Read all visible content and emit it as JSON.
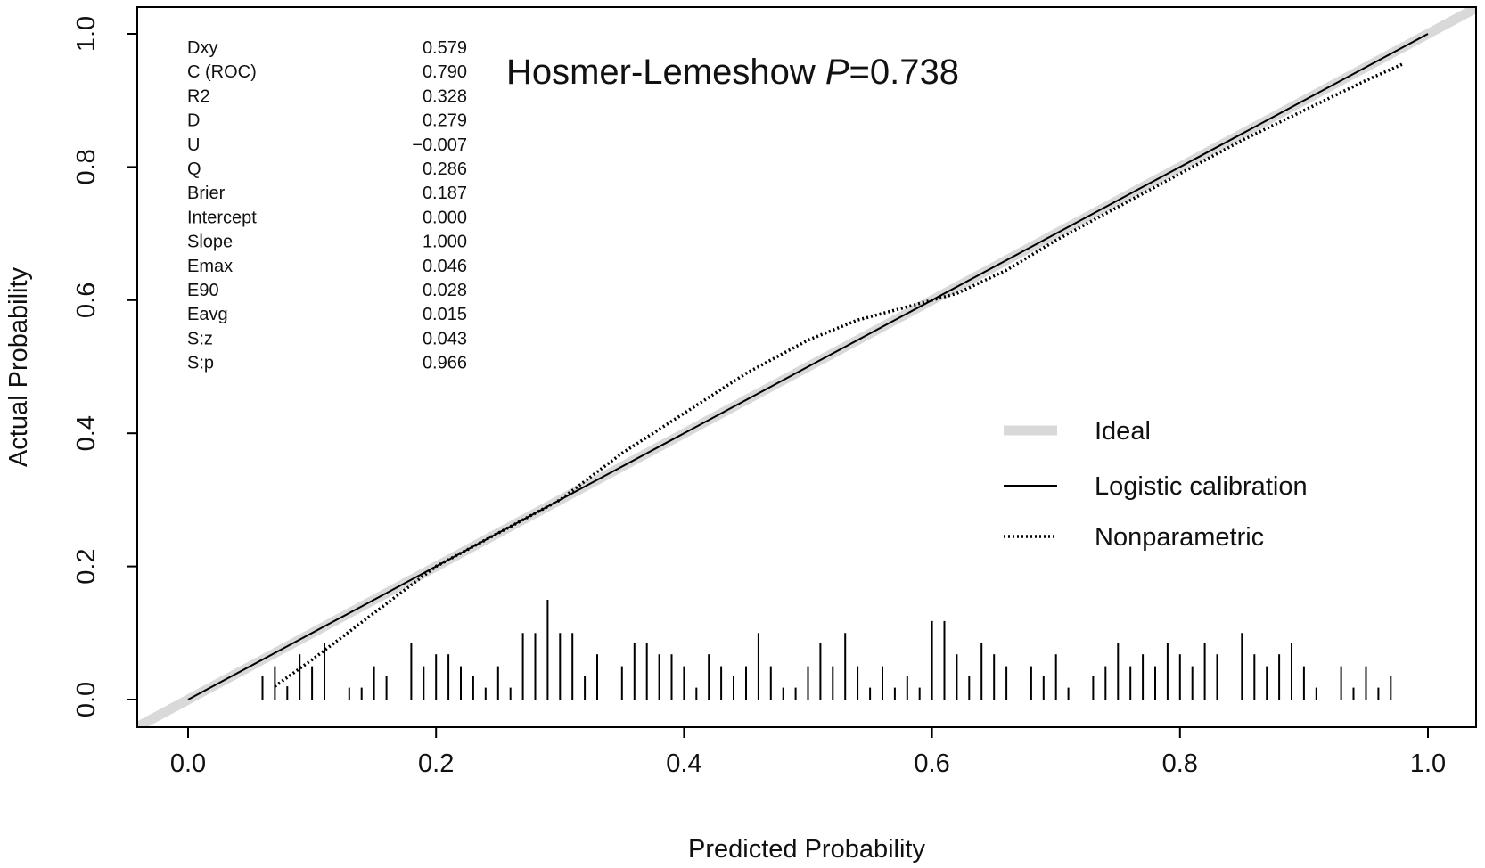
{
  "chart_data": {
    "type": "line",
    "title_text": "Hosmer-Lemeshow ",
    "title_p": "P",
    "title_value": "=0.738",
    "xlabel": "Predicted Probability",
    "ylabel": "Actual Probability",
    "xlim": [
      0.0,
      1.0
    ],
    "ylim": [
      0.0,
      1.0
    ],
    "x_ticks": [
      "0.0",
      "0.2",
      "0.4",
      "0.6",
      "0.8",
      "1.0"
    ],
    "y_ticks": [
      "0.0",
      "0.2",
      "0.4",
      "0.6",
      "0.8",
      "1.0"
    ],
    "grid": false,
    "legend_position": "right-middle",
    "stats": [
      {
        "label": "Dxy",
        "value": "0.579"
      },
      {
        "label": "C (ROC)",
        "value": "0.790"
      },
      {
        "label": "R2",
        "value": "0.328"
      },
      {
        "label": "D",
        "value": "0.279"
      },
      {
        "label": "U",
        "value": "−0.007"
      },
      {
        "label": "Q",
        "value": "0.286"
      },
      {
        "label": "Brier",
        "value": "0.187"
      },
      {
        "label": "Intercept",
        "value": "0.000"
      },
      {
        "label": "Slope",
        "value": "1.000"
      },
      {
        "label": "Emax",
        "value": "0.046"
      },
      {
        "label": "E90",
        "value": "0.028"
      },
      {
        "label": "Eavg",
        "value": "0.015"
      },
      {
        "label": "S:z",
        "value": "0.043"
      },
      {
        "label": "S:p",
        "value": "0.966"
      }
    ],
    "series": [
      {
        "name": "Ideal",
        "style": "thick-gray",
        "color": "#d9d9d9",
        "x": [
          -0.04,
          1.04
        ],
        "y": [
          -0.04,
          1.04
        ]
      },
      {
        "name": "Logistic calibration",
        "style": "solid",
        "color": "#000000",
        "x": [
          0.0,
          1.0
        ],
        "y": [
          0.0,
          1.0
        ]
      },
      {
        "name": "Nonparametric",
        "style": "dotted",
        "color": "#000000",
        "x": [
          0.07,
          0.1,
          0.15,
          0.2,
          0.25,
          0.3,
          0.35,
          0.4,
          0.45,
          0.5,
          0.54,
          0.58,
          0.62,
          0.66,
          0.7,
          0.75,
          0.8,
          0.85,
          0.9,
          0.95,
          0.98
        ],
        "y": [
          0.02,
          0.06,
          0.13,
          0.2,
          0.25,
          0.3,
          0.37,
          0.43,
          0.49,
          0.54,
          0.57,
          0.59,
          0.61,
          0.645,
          0.69,
          0.74,
          0.79,
          0.84,
          0.885,
          0.93,
          0.955
        ]
      }
    ],
    "rug": [
      {
        "x": 0.06,
        "h": 0.035
      },
      {
        "x": 0.07,
        "h": 0.05
      },
      {
        "x": 0.08,
        "h": 0.02
      },
      {
        "x": 0.09,
        "h": 0.068
      },
      {
        "x": 0.1,
        "h": 0.05
      },
      {
        "x": 0.11,
        "h": 0.085
      },
      {
        "x": 0.13,
        "h": 0.018
      },
      {
        "x": 0.14,
        "h": 0.018
      },
      {
        "x": 0.15,
        "h": 0.05
      },
      {
        "x": 0.16,
        "h": 0.035
      },
      {
        "x": 0.18,
        "h": 0.085
      },
      {
        "x": 0.19,
        "h": 0.05
      },
      {
        "x": 0.2,
        "h": 0.068
      },
      {
        "x": 0.21,
        "h": 0.068
      },
      {
        "x": 0.22,
        "h": 0.05
      },
      {
        "x": 0.23,
        "h": 0.035
      },
      {
        "x": 0.24,
        "h": 0.018
      },
      {
        "x": 0.25,
        "h": 0.05
      },
      {
        "x": 0.26,
        "h": 0.018
      },
      {
        "x": 0.27,
        "h": 0.1
      },
      {
        "x": 0.28,
        "h": 0.1
      },
      {
        "x": 0.29,
        "h": 0.15
      },
      {
        "x": 0.3,
        "h": 0.1
      },
      {
        "x": 0.31,
        "h": 0.1
      },
      {
        "x": 0.32,
        "h": 0.035
      },
      {
        "x": 0.33,
        "h": 0.068
      },
      {
        "x": 0.35,
        "h": 0.05
      },
      {
        "x": 0.36,
        "h": 0.085
      },
      {
        "x": 0.37,
        "h": 0.085
      },
      {
        "x": 0.38,
        "h": 0.068
      },
      {
        "x": 0.39,
        "h": 0.068
      },
      {
        "x": 0.4,
        "h": 0.05
      },
      {
        "x": 0.41,
        "h": 0.018
      },
      {
        "x": 0.42,
        "h": 0.068
      },
      {
        "x": 0.43,
        "h": 0.05
      },
      {
        "x": 0.44,
        "h": 0.035
      },
      {
        "x": 0.45,
        "h": 0.05
      },
      {
        "x": 0.46,
        "h": 0.1
      },
      {
        "x": 0.47,
        "h": 0.05
      },
      {
        "x": 0.48,
        "h": 0.018
      },
      {
        "x": 0.49,
        "h": 0.018
      },
      {
        "x": 0.5,
        "h": 0.05
      },
      {
        "x": 0.51,
        "h": 0.085
      },
      {
        "x": 0.52,
        "h": 0.05
      },
      {
        "x": 0.53,
        "h": 0.1
      },
      {
        "x": 0.54,
        "h": 0.05
      },
      {
        "x": 0.55,
        "h": 0.018
      },
      {
        "x": 0.56,
        "h": 0.05
      },
      {
        "x": 0.57,
        "h": 0.018
      },
      {
        "x": 0.58,
        "h": 0.035
      },
      {
        "x": 0.59,
        "h": 0.018
      },
      {
        "x": 0.6,
        "h": 0.118
      },
      {
        "x": 0.61,
        "h": 0.118
      },
      {
        "x": 0.62,
        "h": 0.068
      },
      {
        "x": 0.63,
        "h": 0.035
      },
      {
        "x": 0.64,
        "h": 0.085
      },
      {
        "x": 0.65,
        "h": 0.068
      },
      {
        "x": 0.66,
        "h": 0.05
      },
      {
        "x": 0.68,
        "h": 0.05
      },
      {
        "x": 0.69,
        "h": 0.035
      },
      {
        "x": 0.7,
        "h": 0.068
      },
      {
        "x": 0.71,
        "h": 0.018
      },
      {
        "x": 0.73,
        "h": 0.035
      },
      {
        "x": 0.74,
        "h": 0.05
      },
      {
        "x": 0.75,
        "h": 0.085
      },
      {
        "x": 0.76,
        "h": 0.05
      },
      {
        "x": 0.77,
        "h": 0.068
      },
      {
        "x": 0.78,
        "h": 0.05
      },
      {
        "x": 0.79,
        "h": 0.085
      },
      {
        "x": 0.8,
        "h": 0.068
      },
      {
        "x": 0.81,
        "h": 0.05
      },
      {
        "x": 0.82,
        "h": 0.085
      },
      {
        "x": 0.83,
        "h": 0.068
      },
      {
        "x": 0.85,
        "h": 0.1
      },
      {
        "x": 0.86,
        "h": 0.068
      },
      {
        "x": 0.87,
        "h": 0.05
      },
      {
        "x": 0.88,
        "h": 0.068
      },
      {
        "x": 0.89,
        "h": 0.085
      },
      {
        "x": 0.9,
        "h": 0.05
      },
      {
        "x": 0.91,
        "h": 0.018
      },
      {
        "x": 0.93,
        "h": 0.05
      },
      {
        "x": 0.94,
        "h": 0.018
      },
      {
        "x": 0.95,
        "h": 0.05
      },
      {
        "x": 0.96,
        "h": 0.018
      },
      {
        "x": 0.97,
        "h": 0.035
      }
    ]
  }
}
